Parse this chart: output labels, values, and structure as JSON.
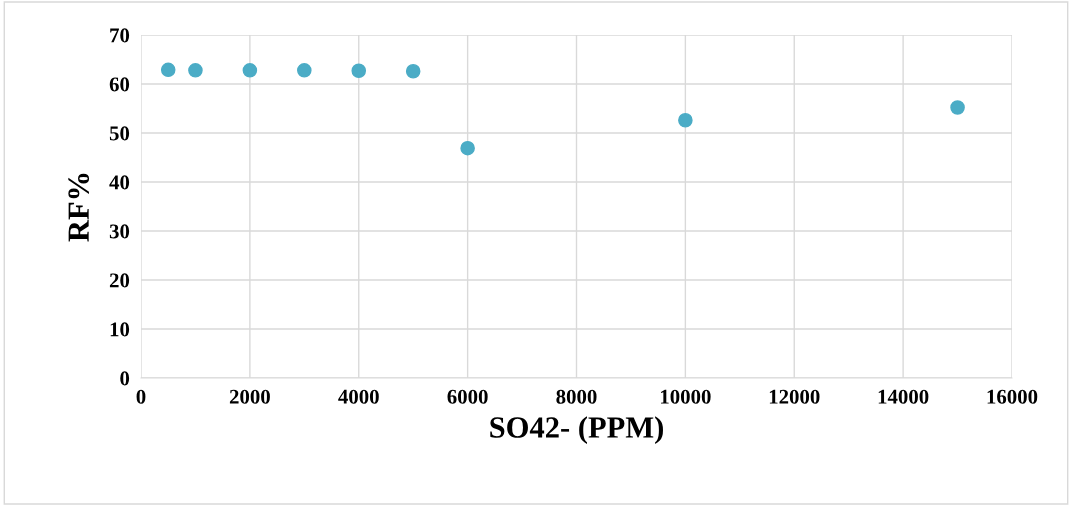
{
  "chart_data": {
    "type": "scatter",
    "xlabel": "SO42- (PPM)",
    "ylabel": "RF%",
    "x": [
      500,
      1000,
      2000,
      3000,
      4000,
      5000,
      6000,
      10000,
      15000
    ],
    "series": [
      {
        "color": "#4bacc6",
        "values": [
          62.9,
          62.8,
          62.8,
          62.8,
          62.7,
          62.6,
          46.9,
          52.6,
          55.2
        ]
      }
    ],
    "xlim": [
      0,
      16000
    ],
    "xticks": [
      0,
      2000,
      4000,
      6000,
      8000,
      10000,
      12000,
      14000,
      16000
    ],
    "ylim": [
      0,
      70
    ],
    "yticks": [
      0,
      10,
      20,
      30,
      40,
      50,
      60,
      70
    ],
    "grid": true,
    "marker": "circle",
    "legend": false
  }
}
